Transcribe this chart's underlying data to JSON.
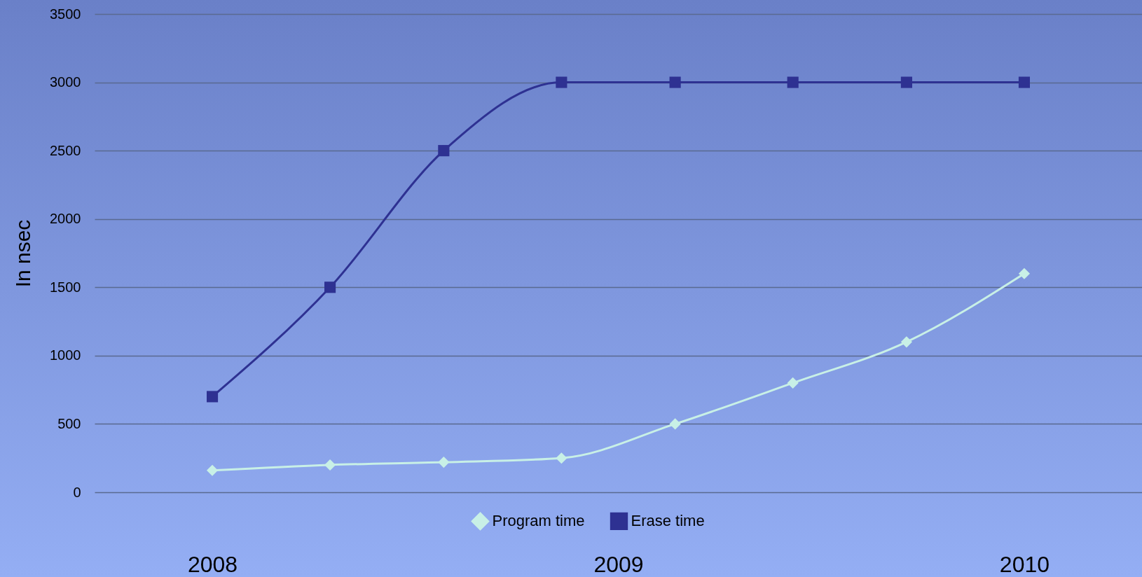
{
  "chart_data": {
    "type": "line",
    "ylabel": "In nsec",
    "x": [
      2008,
      2008.29,
      2008.57,
      2008.86,
      2009.14,
      2009.43,
      2009.71,
      2010
    ],
    "xlim": [
      2007.71,
      2010.29
    ],
    "xticks": [
      2008,
      2009,
      2010
    ],
    "ylim": [
      0,
      3500
    ],
    "yticks": [
      0,
      500,
      1000,
      1500,
      2000,
      2500,
      3000,
      3500
    ],
    "grid": "y",
    "legend": "bottom",
    "series": [
      {
        "name": "Program time",
        "color": "#c8f0e6",
        "marker": "diamond",
        "values": [
          160,
          200,
          220,
          250,
          500,
          800,
          1100,
          1600
        ]
      },
      {
        "name": "Erase time",
        "color": "#2e3192",
        "marker": "square",
        "values": [
          700,
          1500,
          2500,
          3000,
          3000,
          3000,
          3000,
          3000
        ]
      }
    ]
  }
}
